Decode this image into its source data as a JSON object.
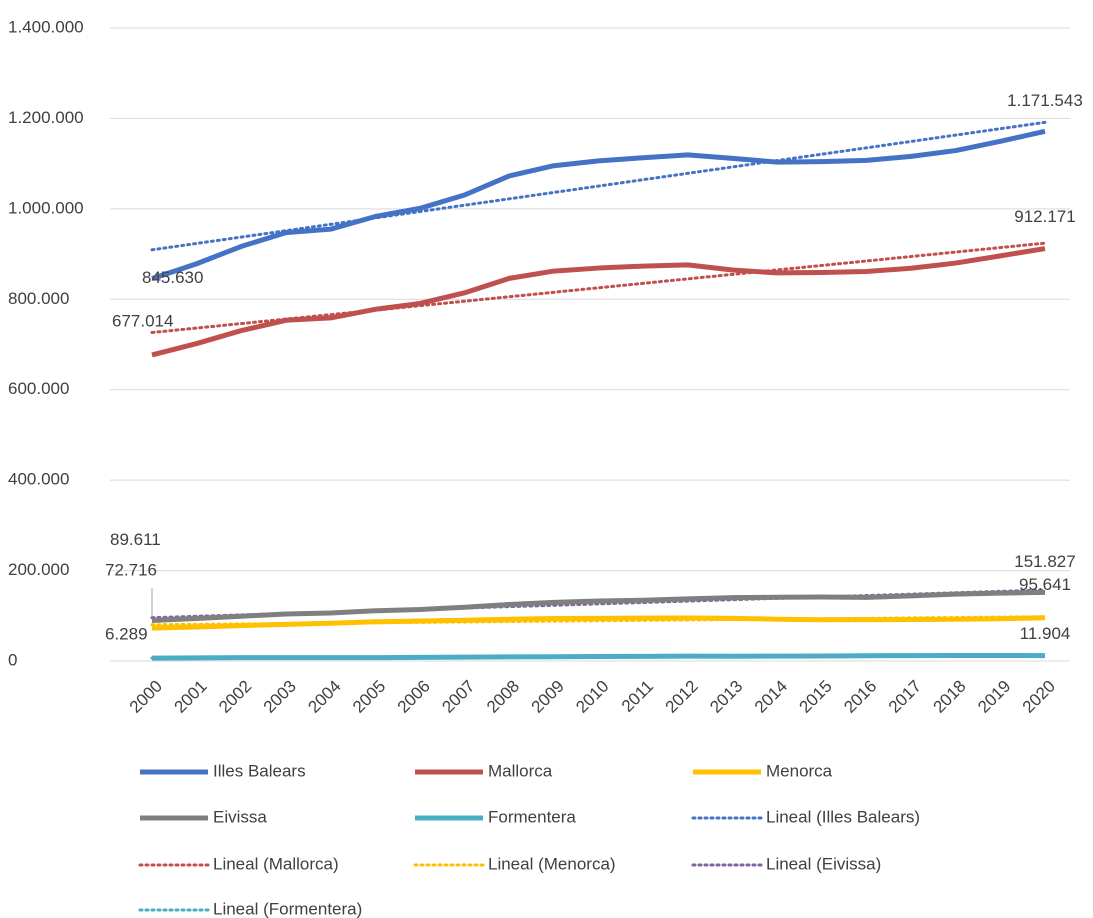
{
  "chart_data": {
    "type": "line",
    "categories": [
      "2000",
      "2001",
      "2002",
      "2003",
      "2004",
      "2005",
      "2006",
      "2007",
      "2008",
      "2009",
      "2010",
      "2011",
      "2012",
      "2013",
      "2014",
      "2015",
      "2016",
      "2017",
      "2018",
      "2019",
      "2020"
    ],
    "ylim": [
      0,
      1400000
    ],
    "yticks": [
      0,
      {
        "value": 200000,
        "label": "200.000"
      },
      {
        "value": 400000,
        "label": "400.000"
      },
      {
        "value": 600000,
        "label": "600.000"
      },
      {
        "value": 800000,
        "label": "800.000"
      },
      {
        "value": 1000000,
        "label": "1.000.000"
      },
      {
        "value": 1200000,
        "label": "1.200.000"
      },
      {
        "value": 1400000,
        "label": "1.400.000"
      }
    ],
    "grid": true,
    "legend": "bottom",
    "series": [
      {
        "name": "Illes Balears",
        "color": "#4472c4",
        "values": [
          845630,
          878627,
          916968,
          947361,
          955045,
          983131,
          1001062,
          1030650,
          1072844,
          1095426,
          1106049,
          1113114,
          1119439,
          1111674,
          1103442,
          1104479,
          1107220,
          1115999,
          1128908,
          1149460,
          1171543
        ],
        "value_labels": [
          "845.630",
          null,
          null,
          null,
          null,
          null,
          null,
          null,
          null,
          null,
          null,
          null,
          null,
          null,
          null,
          null,
          null,
          null,
          null,
          null,
          "1.171.543"
        ],
        "trendline": {
          "type": "linear",
          "name": "Lineal (Illes Balears)",
          "color": "#4472c4"
        }
      },
      {
        "name": "Mallorca",
        "color": "#c0504d",
        "values": [
          677014,
          702122,
          730778,
          753584,
          758822,
          777821,
          790763,
          814275,
          846210,
          862397,
          869067,
          873414,
          876147,
          864763,
          858313,
          859289,
          861430,
          868693,
          880113,
          896038,
          912171
        ],
        "value_labels": [
          "677.014",
          null,
          null,
          null,
          null,
          null,
          null,
          null,
          null,
          null,
          null,
          null,
          null,
          null,
          null,
          null,
          null,
          null,
          null,
          null,
          "912.171"
        ],
        "trendline": {
          "type": "linear",
          "name": "Lineal (Mallorca)",
          "color": "#c0504d"
        }
      },
      {
        "name": "Menorca",
        "color": "#ffc000",
        "values": [
          72716,
          75296,
          78336,
          81067,
          83505,
          86697,
          88434,
          90235,
          92434,
          93915,
          94383,
          94875,
          95178,
          94383,
          92434,
          91170,
          91601,
          91682,
          92434,
          93397,
          95641
        ],
        "value_labels": [
          "72.716",
          null,
          null,
          null,
          null,
          null,
          null,
          null,
          null,
          null,
          null,
          null,
          null,
          null,
          null,
          null,
          null,
          null,
          null,
          null,
          "95.641"
        ],
        "trendline": {
          "type": "linear",
          "name": "Lineal (Menorca)",
          "color": "#ffc000"
        }
      },
      {
        "name": "Eivissa",
        "color": "#7f7f7f",
        "values": [
          89611,
          94050,
          99000,
          104000,
          106220,
          111107,
          113908,
          119000,
          125053,
          129562,
          132637,
          134460,
          137357,
          140271,
          140964,
          141627,
          140800,
          144000,
          147914,
          150000,
          151827
        ],
        "value_labels": [
          "89.611",
          null,
          null,
          null,
          null,
          null,
          null,
          null,
          null,
          null,
          null,
          null,
          null,
          null,
          null,
          null,
          null,
          null,
          null,
          null,
          "151.827"
        ],
        "trendline": {
          "type": "linear",
          "name": "Lineal (Eivissa)",
          "color": "#8064a2"
        }
      },
      {
        "name": "Formentera",
        "color": "#4bacc6",
        "values": [
          6289,
          6800,
          7500,
          7600,
          7400,
          7500,
          7900,
          8500,
          9100,
          9500,
          9900,
          10300,
          10700,
          10600,
          10800,
          11100,
          11700,
          11900,
          12100,
          12200,
          11904
        ],
        "value_labels": [
          "6.289",
          null,
          null,
          null,
          null,
          null,
          null,
          null,
          null,
          null,
          null,
          null,
          null,
          null,
          null,
          null,
          null,
          null,
          null,
          null,
          "11.904"
        ],
        "trendline": {
          "type": "linear",
          "name": "Lineal (Formentera)",
          "color": "#4bacc6"
        }
      }
    ]
  }
}
